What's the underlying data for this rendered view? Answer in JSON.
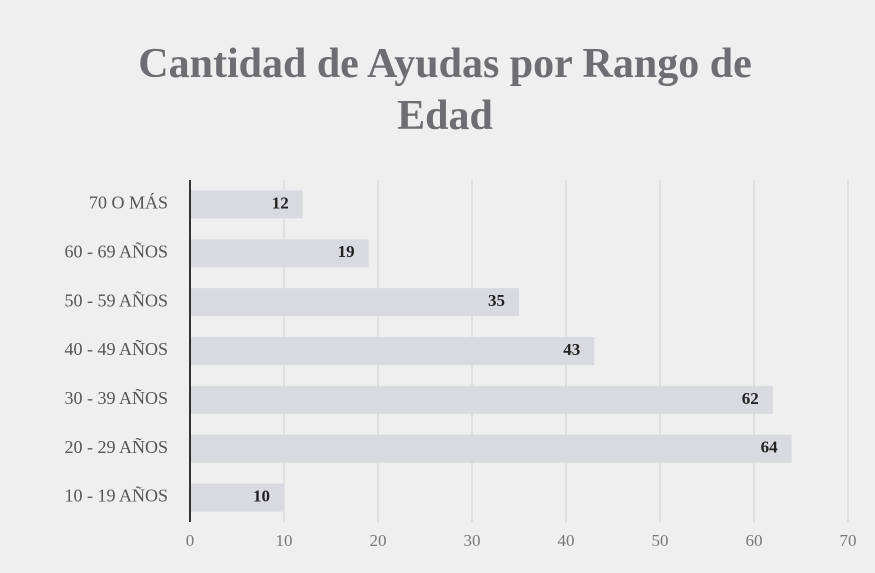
{
  "chart_data": {
    "type": "bar",
    "orientation": "horizontal",
    "title": "Cantidad de Ayudas por Rango de Edad",
    "categories": [
      "70 O MÁS",
      "60 - 69 AÑOS",
      "50 - 59 AÑOS",
      "40 - 49 AÑOS",
      "30 - 39 AÑOS",
      "20 - 29 AÑOS",
      "10 - 19 AÑOS"
    ],
    "values": [
      12,
      19,
      35,
      43,
      62,
      64,
      10
    ],
    "color": "#d9d9e0",
    "xlim": [
      0,
      70
    ],
    "xticks": [
      0,
      10,
      20,
      30,
      40,
      50,
      60,
      70
    ],
    "grid": true
  }
}
